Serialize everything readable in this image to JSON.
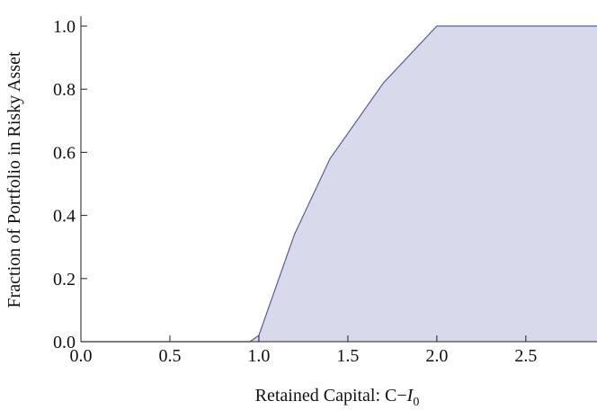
{
  "chart_data": {
    "type": "area",
    "ylabel": "Fraction of Portfolio in Risky Asset",
    "xlabel": "Retained Capital: C−",
    "xlabel_var": "I",
    "xlabel_sub": "0",
    "x": [
      0,
      0.95,
      1.0,
      1.2,
      1.4,
      1.7,
      2.0,
      2.9
    ],
    "values": [
      0,
      0,
      0.02,
      0.34,
      0.58,
      0.82,
      1.0,
      1.0
    ],
    "fill": "#d9d9ec",
    "color": "#5b5ba3",
    "xlim": [
      0,
      2.9
    ],
    "ylim": [
      0,
      1.0
    ],
    "xticks": [
      {
        "value": 0,
        "label": "0.0"
      },
      0.5,
      {
        "value": 1,
        "label": "1.0"
      },
      1.5,
      {
        "value": 2,
        "label": "2.0"
      },
      2.5
    ],
    "yticks": [
      {
        "value": 0,
        "label": "0.0"
      },
      0.2,
      0.4,
      0.6,
      0.8,
      {
        "value": 1,
        "label": "1.0"
      }
    ]
  }
}
